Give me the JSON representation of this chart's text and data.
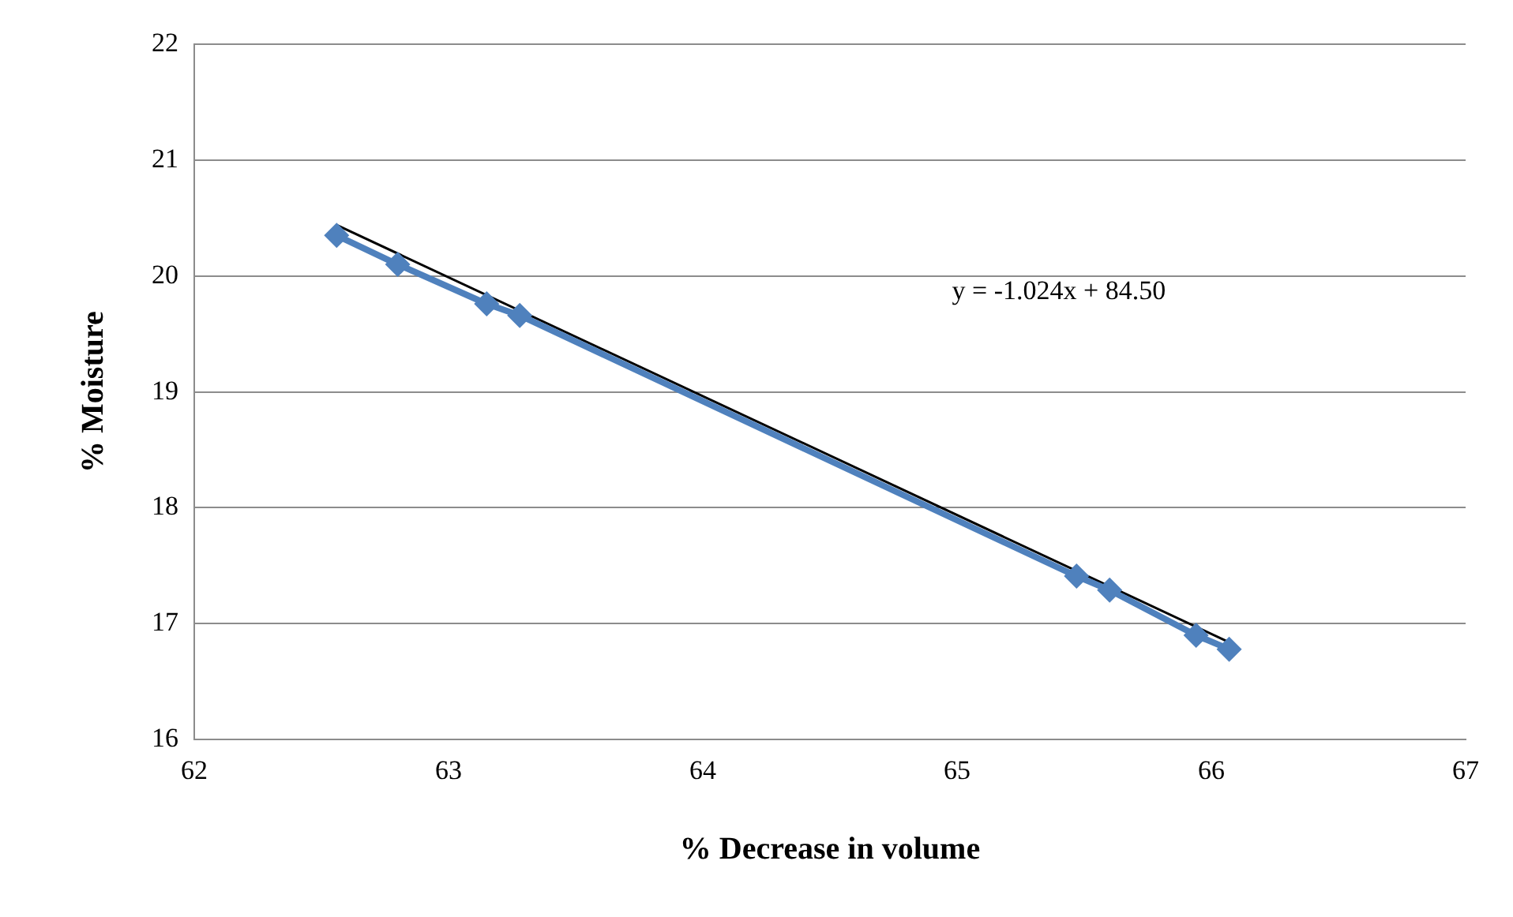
{
  "chart_data": {
    "type": "scatter",
    "xlabel": "% Decrease in volume",
    "ylabel": "% Moisture",
    "xlim": [
      62,
      67
    ],
    "xticks": [
      62,
      63,
      64,
      65,
      66,
      67
    ],
    "ylim": [
      16,
      22
    ],
    "yticks": [
      16,
      17,
      18,
      19,
      20,
      21,
      22
    ],
    "grid": "y",
    "legend": false,
    "series": [
      {
        "type": "line",
        "color": "#4f81bd",
        "marker": "diamond",
        "x": [
          62.56,
          62.8,
          63.15,
          63.28,
          65.47,
          65.6,
          65.94,
          66.07
        ],
        "values": [
          20.35,
          20.1,
          19.76,
          19.66,
          17.41,
          17.29,
          16.9,
          16.78
        ]
      },
      {
        "type": "line",
        "color": "#000000",
        "marker": "none",
        "x": [
          62.56,
          66.07
        ],
        "values": [
          20.44,
          16.84
        ]
      }
    ],
    "annotations": [
      "y = -1.024x + 84.50"
    ]
  }
}
